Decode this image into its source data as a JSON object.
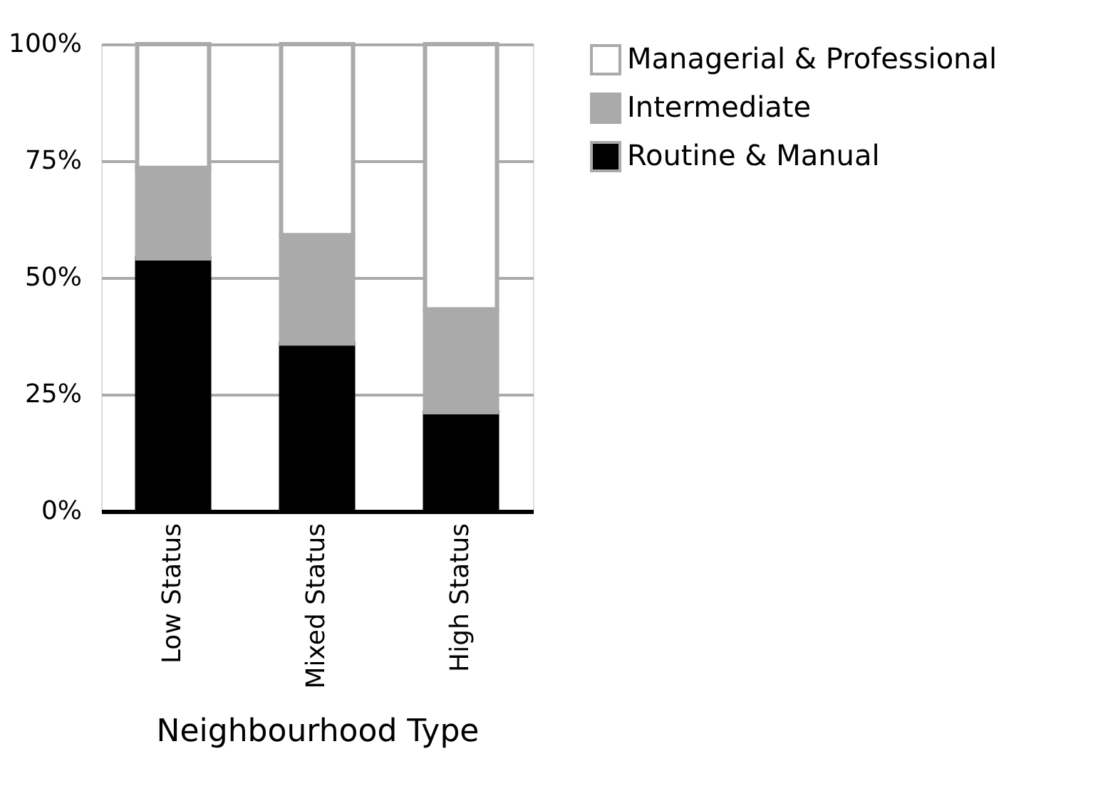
{
  "chart_data": {
    "type": "bar",
    "stacked": true,
    "xlabel": "Neighbourhood Type",
    "categories": [
      "Low Status",
      "Mixed Status",
      "High Status"
    ],
    "series": [
      {
        "name": "Routine & Manual",
        "color": "#000000",
        "values": [
          54.1,
          35.9,
          21.2
        ]
      },
      {
        "name": "Intermediate",
        "color": "#aaaaaa",
        "values": [
          19.4,
          23.2,
          22.0
        ]
      },
      {
        "name": "Managerial & Professional",
        "color": "#ffffff",
        "values": [
          26.5,
          40.9,
          56.8
        ]
      }
    ],
    "ylim": [
      0,
      100
    ],
    "yticks": [
      {
        "value": 0,
        "label": "0%"
      },
      {
        "value": 25,
        "label": "25%"
      },
      {
        "value": 50,
        "label": "50%"
      },
      {
        "value": 75,
        "label": "75%"
      },
      {
        "value": 100,
        "label": "100%"
      }
    ],
    "grid": "y",
    "legend": "top right"
  }
}
